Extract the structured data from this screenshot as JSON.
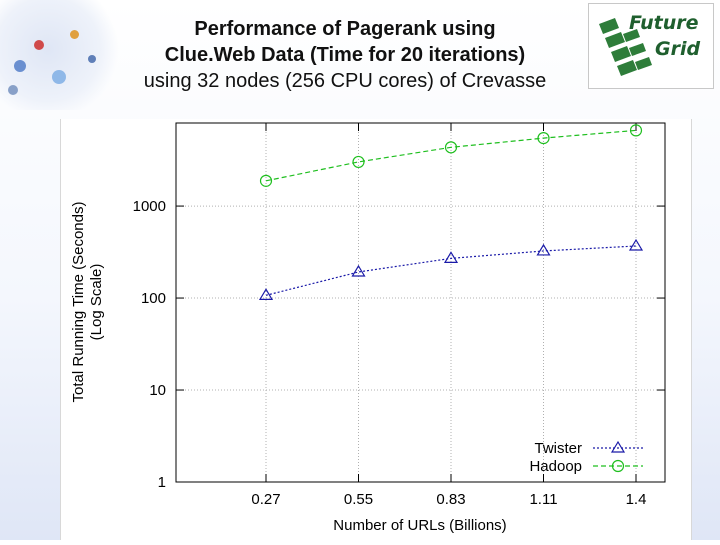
{
  "title": {
    "line1": "Performance of Pagerank using",
    "line2": "Clue.Web Data (Time for 20 iterations)",
    "line3": "using 32 nodes (256 CPU cores) of Crevasse"
  },
  "logo": {
    "line1": "Future",
    "line2": "Grid"
  },
  "chart_data": {
    "type": "line",
    "categories": [
      "0.27",
      "0.55",
      "0.83",
      "1.11",
      "1.4"
    ],
    "xlabel": "Number of URLs (Billions)",
    "ylabel_line1": "Total Running Time (Seconds)",
    "ylabel_line2": "(Log Scale)",
    "yscale": "log",
    "ylim": [
      1,
      8000
    ],
    "yticks": [
      1,
      10,
      100,
      1000
    ],
    "ytick_labels": [
      "1",
      "10",
      "100",
      "1000"
    ],
    "grid": true,
    "legend_position": "bottom-right",
    "series": [
      {
        "name": "Twister",
        "marker": "triangle",
        "color": "#1a1aa8",
        "values": [
          107,
          192,
          270,
          325,
          368
        ]
      },
      {
        "name": "Hadoop",
        "marker": "circle",
        "color": "#1fbf1f",
        "values": [
          1880,
          3020,
          4350,
          5480,
          6650
        ]
      }
    ]
  }
}
